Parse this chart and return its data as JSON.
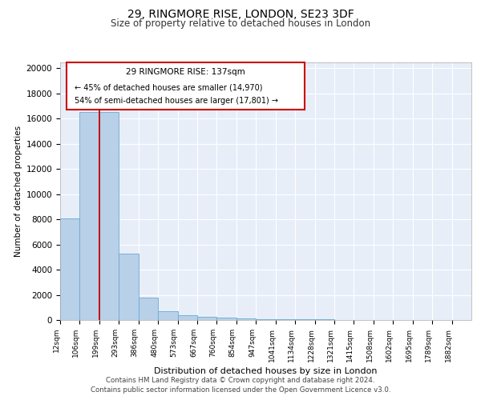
{
  "title1": "29, RINGMORE RISE, LONDON, SE23 3DF",
  "title2": "Size of property relative to detached houses in London",
  "xlabel": "Distribution of detached houses by size in London",
  "ylabel": "Number of detached properties",
  "footer1": "Contains HM Land Registry data © Crown copyright and database right 2024.",
  "footer2": "Contains public sector information licensed under the Open Government Licence v3.0.",
  "annotation_line1": "29 RINGMORE RISE: 137sqm",
  "annotation_line2": "← 45% of detached houses are smaller (14,970)",
  "annotation_line3": "54% of semi-detached houses are larger (17,801) →",
  "bar_color": "#b8d0e8",
  "bar_edge_color": "#6aaad4",
  "red_line_color": "#cc0000",
  "annotation_box_edgecolor": "#cc0000",
  "background_color": "#e8eef8",
  "grid_color": "#ffffff",
  "categories": [
    "12sqm",
    "106sqm",
    "199sqm",
    "293sqm",
    "386sqm",
    "480sqm",
    "573sqm",
    "667sqm",
    "760sqm",
    "854sqm",
    "947sqm",
    "1041sqm",
    "1134sqm",
    "1228sqm",
    "1321sqm",
    "1415sqm",
    "1508sqm",
    "1602sqm",
    "1695sqm",
    "1789sqm",
    "1882sqm"
  ],
  "values": [
    8050,
    16500,
    16550,
    5300,
    1800,
    680,
    395,
    265,
    170,
    115,
    85,
    65,
    50,
    38,
    28,
    20,
    13,
    9,
    6,
    4,
    2
  ],
  "red_line_x": 2,
  "ylim": [
    0,
    20500
  ],
  "yticks": [
    0,
    2000,
    4000,
    6000,
    8000,
    10000,
    12000,
    14000,
    16000,
    18000,
    20000
  ]
}
